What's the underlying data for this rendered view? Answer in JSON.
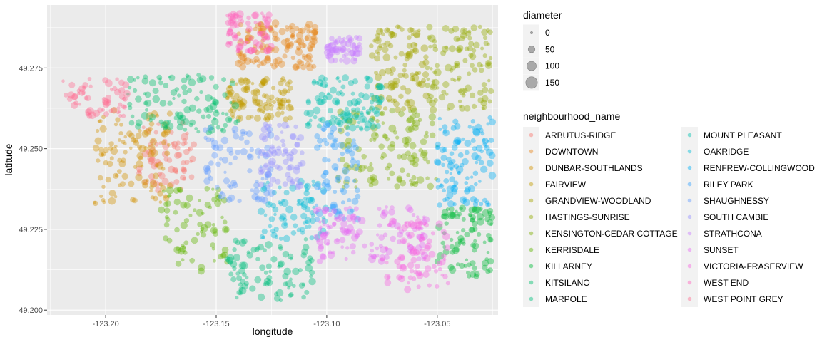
{
  "chart_data": {
    "type": "scatter",
    "title": "",
    "xlabel": "longitude",
    "ylabel": "latitude",
    "xlim": [
      -123.2265,
      -123.0225
    ],
    "ylim": [
      49.1985,
      49.2945
    ],
    "x_ticks": [
      -123.2,
      -123.15,
      -123.1,
      -123.05
    ],
    "x_tick_labels": [
      "-123.20",
      "-123.15",
      "-123.10",
      "-123.05"
    ],
    "y_ticks": [
      49.2,
      49.225,
      49.25,
      49.275
    ],
    "y_tick_labels": [
      "49.200",
      "49.225",
      "49.250",
      "49.275"
    ],
    "grid": true,
    "legend_position": "right",
    "point_alpha": 0.4,
    "size_legend": {
      "title": "diameter",
      "values": [
        0,
        50,
        100,
        150
      ],
      "labels": [
        "0",
        "50",
        "100",
        "150"
      ]
    },
    "color_legend": {
      "title": "neighbourhood_name"
    },
    "series": [
      {
        "name": "ARBUTUS-RIDGE",
        "color": "#F8766D",
        "lon_range": [
          -123.185,
          -123.16
        ],
        "lat_range": [
          49.237,
          49.258
        ],
        "count": 70
      },
      {
        "name": "DOWNTOWN",
        "color": "#E7861B",
        "lon_range": [
          -123.14,
          -123.105
        ],
        "lat_range": [
          49.275,
          49.289
        ],
        "count": 140
      },
      {
        "name": "DUNBAR-SOUTHLANDS",
        "color": "#D39200",
        "lon_range": [
          -123.205,
          -123.17
        ],
        "lat_range": [
          49.233,
          49.262
        ],
        "count": 110
      },
      {
        "name": "FAIRVIEW",
        "color": "#C09B00",
        "lon_range": [
          -123.145,
          -123.115
        ],
        "lat_range": [
          49.259,
          49.272
        ],
        "count": 110
      },
      {
        "name": "GRANDVIEW-WOODLAND",
        "color": "#A3A500",
        "lon_range": [
          -123.08,
          -123.055
        ],
        "lat_range": [
          49.262,
          49.288
        ],
        "count": 110
      },
      {
        "name": "HASTINGS-SUNRISE",
        "color": "#93AA00",
        "lon_range": [
          -123.055,
          -123.025
        ],
        "lat_range": [
          49.262,
          49.288
        ],
        "count": 110
      },
      {
        "name": "KENSINGTON-CEDAR COTTAGE",
        "color": "#7CAE00",
        "lon_range": [
          -123.095,
          -123.05
        ],
        "lat_range": [
          49.238,
          49.262
        ],
        "count": 120
      },
      {
        "name": "KERRISDALE",
        "color": "#5EB300",
        "lon_range": [
          -123.175,
          -123.145
        ],
        "lat_range": [
          49.212,
          49.238
        ],
        "count": 80
      },
      {
        "name": "KILLARNEY",
        "color": "#00BA38",
        "lon_range": [
          -123.05,
          -123.025
        ],
        "lat_range": [
          49.21,
          49.232
        ],
        "count": 90
      },
      {
        "name": "KITSILANO",
        "color": "#00BE6C",
        "lon_range": [
          -123.19,
          -123.14
        ],
        "lat_range": [
          49.255,
          49.273
        ],
        "count": 110
      },
      {
        "name": "MARPOLE",
        "color": "#00BF7D",
        "lon_range": [
          -123.145,
          -123.105
        ],
        "lat_range": [
          49.203,
          49.222
        ],
        "count": 90
      },
      {
        "name": "MOUNT PLEASANT",
        "color": "#00C0AF",
        "lon_range": [
          -123.11,
          -123.075
        ],
        "lat_range": [
          49.256,
          49.272
        ],
        "count": 110
      },
      {
        "name": "OAKRIDGE",
        "color": "#00BCD8",
        "lon_range": [
          -123.13,
          -123.1
        ],
        "lat_range": [
          49.222,
          49.24
        ],
        "count": 80
      },
      {
        "name": "RENFREW-COLLINGWOOD",
        "color": "#00B0F6",
        "lon_range": [
          -123.05,
          -123.025
        ],
        "lat_range": [
          49.232,
          49.26
        ],
        "count": 110
      },
      {
        "name": "RILEY PARK",
        "color": "#35A2FF",
        "lon_range": [
          -123.105,
          -123.085
        ],
        "lat_range": [
          49.228,
          49.258
        ],
        "count": 80
      },
      {
        "name": "SHAUGHNESSY",
        "color": "#619CFF",
        "lon_range": [
          -123.155,
          -123.125
        ],
        "lat_range": [
          49.233,
          49.257
        ],
        "count": 80
      },
      {
        "name": "SOUTH CAMBIE",
        "color": "#9590FF",
        "lon_range": [
          -123.13,
          -123.11
        ],
        "lat_range": [
          49.238,
          49.258
        ],
        "count": 70
      },
      {
        "name": "STRATHCONA",
        "color": "#C77CFF",
        "lon_range": [
          -123.1,
          -123.085
        ],
        "lat_range": [
          49.277,
          49.285
        ],
        "count": 60
      },
      {
        "name": "SUNSET",
        "color": "#E76BF3",
        "lon_range": [
          -123.105,
          -123.055
        ],
        "lat_range": [
          49.215,
          49.232
        ],
        "count": 130
      },
      {
        "name": "VICTORIA-FRASERVIEW",
        "color": "#F763E0",
        "lon_range": [
          -123.075,
          -123.045
        ],
        "lat_range": [
          49.206,
          49.228
        ],
        "count": 80
      },
      {
        "name": "WEST END",
        "color": "#FF62BC",
        "lon_range": [
          -123.145,
          -123.125
        ],
        "lat_range": [
          49.28,
          49.292
        ],
        "count": 70
      },
      {
        "name": "WEST POINT GREY",
        "color": "#FF6C91",
        "lon_range": [
          -123.22,
          -123.19
        ],
        "lat_range": [
          49.26,
          49.272
        ],
        "count": 60
      }
    ]
  }
}
